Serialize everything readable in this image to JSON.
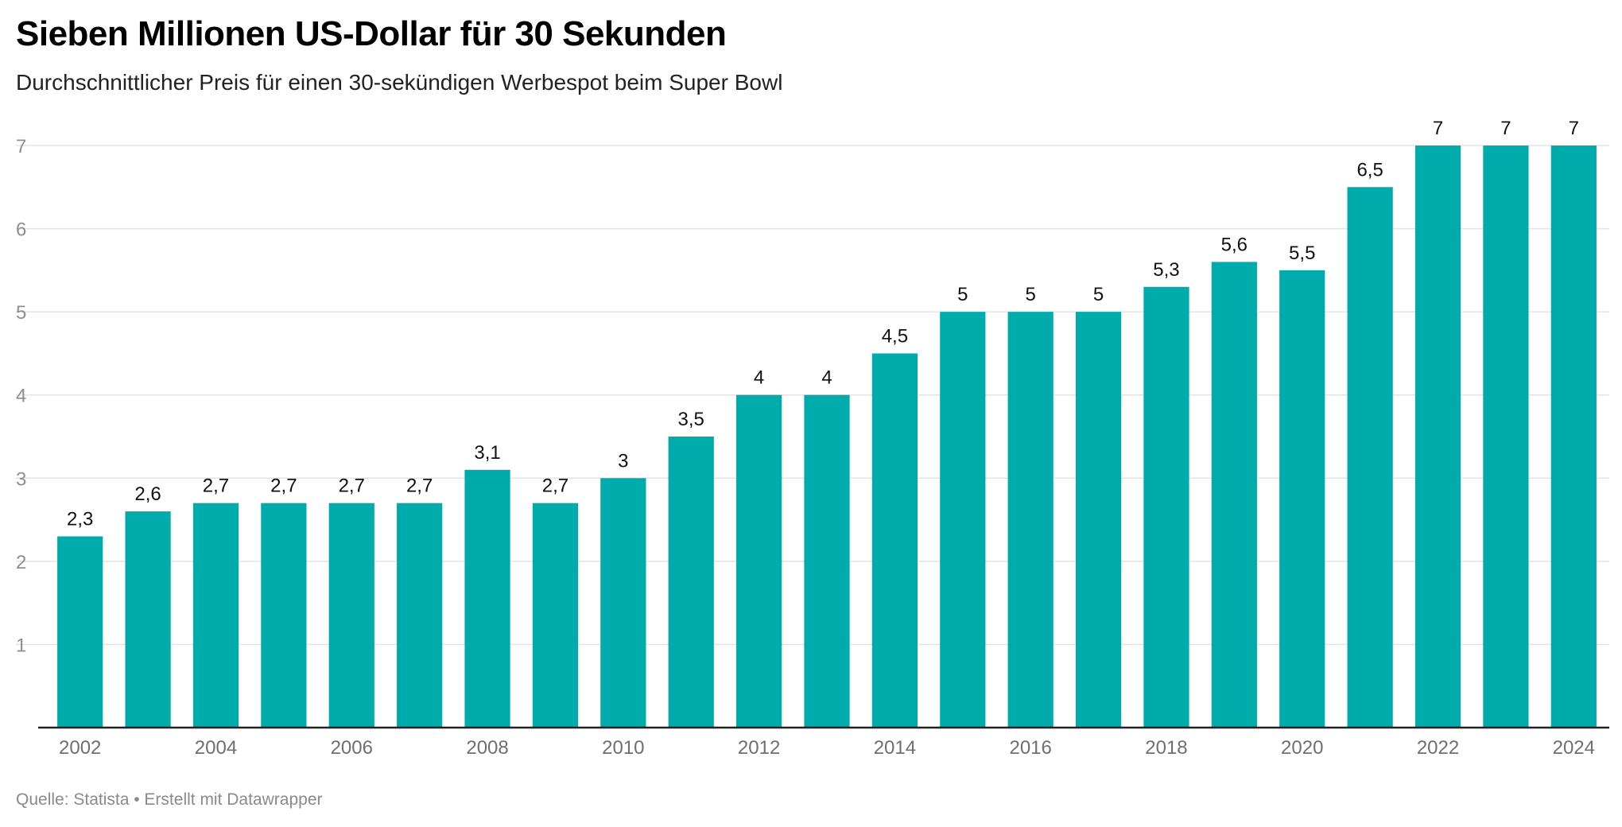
{
  "header": {
    "title": "Sieben Millionen US-Dollar für 30 Sekunden",
    "subtitle": "Durchschnittlicher Preis für einen 30-sekündigen Werbespot beim Super Bowl"
  },
  "footer": {
    "source": "Quelle: Statista • Erstellt mit Datawrapper"
  },
  "colors": {
    "bar": "#00abab",
    "grid": "#e3e3e3",
    "baseline": "#222222"
  },
  "chart_data": {
    "type": "bar",
    "categories": [
      "2002",
      "2003",
      "2004",
      "2005",
      "2006",
      "2007",
      "2008",
      "2009",
      "2010",
      "2011",
      "2012",
      "2013",
      "2014",
      "2015",
      "2016",
      "2017",
      "2018",
      "2019",
      "2020",
      "2021",
      "2022",
      "2023",
      "2024"
    ],
    "values": [
      2.3,
      2.6,
      2.7,
      2.7,
      2.7,
      2.7,
      3.1,
      2.7,
      3,
      3.5,
      4,
      4,
      4.5,
      5,
      5,
      5,
      5.3,
      5.6,
      5.5,
      6.5,
      7,
      7,
      7
    ],
    "value_labels": [
      "2,3",
      "2,6",
      "2,7",
      "2,7",
      "2,7",
      "2,7",
      "3,1",
      "2,7",
      "3",
      "3,5",
      "4",
      "4",
      "4,5",
      "5",
      "5",
      "5",
      "5,3",
      "5,6",
      "5,5",
      "6,5",
      "7",
      "7",
      "7"
    ],
    "x_tick_labels": [
      "2002",
      "",
      "2004",
      "",
      "2006",
      "",
      "2008",
      "",
      "2010",
      "",
      "2012",
      "",
      "2014",
      "",
      "2016",
      "",
      "2018",
      "",
      "2020",
      "",
      "2022",
      "",
      "2024"
    ],
    "y_ticks": [
      1,
      2,
      3,
      4,
      5,
      6,
      7
    ],
    "ylim": [
      0,
      7
    ],
    "grid": true,
    "legend": "none"
  }
}
